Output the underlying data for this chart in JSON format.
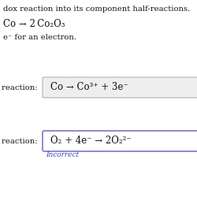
{
  "background_color": "#ffffff",
  "title_text": "dox reaction into its component half-reactions.",
  "reaction_text": "Co → 2 Co₂O₃",
  "electron_note": "e⁻ for an electron.",
  "oxidation_label": "reaction:  ",
  "oxidation_eq": "Co → Co³⁺ + 3e⁻",
  "reduction_label": "reaction:  ",
  "reduction_eq": "O₂ + 4e⁻ → 2O₂²⁻",
  "incorrect_text": "Incorrect",
  "incorrect_color": "#4444bb",
  "box1_edgecolor": "#b0b0b0",
  "box1_facecolor": "#eeeeee",
  "box2_edgecolor": "#7777cc",
  "box2_facecolor": "#ffffff",
  "text_color": "#111111",
  "font_size_title": 7.2,
  "font_size_eq": 8.5,
  "font_size_label": 7.2,
  "font_size_incorrect": 6.5
}
